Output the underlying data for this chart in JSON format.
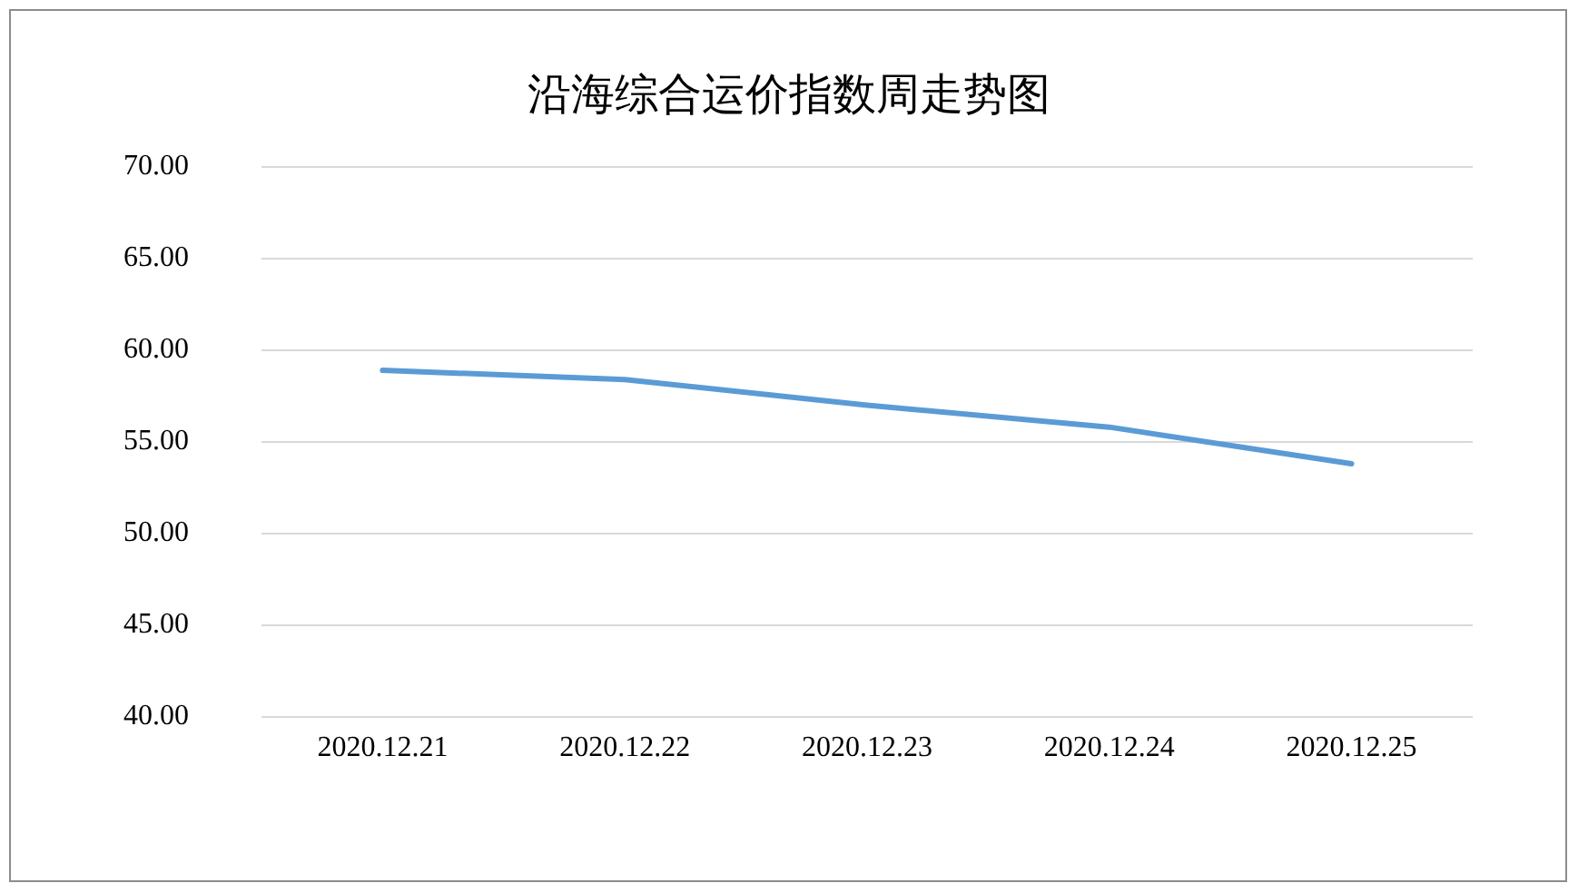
{
  "chart_data": {
    "type": "line",
    "title": "沿海综合运价指数周走势图",
    "categories": [
      "2020.12.21",
      "2020.12.22",
      "2020.12.23",
      "2020.12.24",
      "2020.12.25"
    ],
    "series": [
      {
        "color": "#5b9bd5",
        "values": [
          58.9,
          58.4,
          57.0,
          55.8,
          53.8
        ]
      }
    ],
    "ylim": [
      40,
      70
    ],
    "yticks": [
      {
        "value": 40,
        "label": "40.00"
      },
      {
        "value": 45,
        "label": "45.00"
      },
      {
        "value": 50,
        "label": "50.00"
      },
      {
        "value": 55,
        "label": "55.00"
      },
      {
        "value": 60,
        "label": "60.00"
      },
      {
        "value": 65,
        "label": "65.00"
      },
      {
        "value": 70,
        "label": "70.00"
      }
    ],
    "grid": "y",
    "legend": false,
    "marker": "none",
    "line_style": "solid"
  }
}
